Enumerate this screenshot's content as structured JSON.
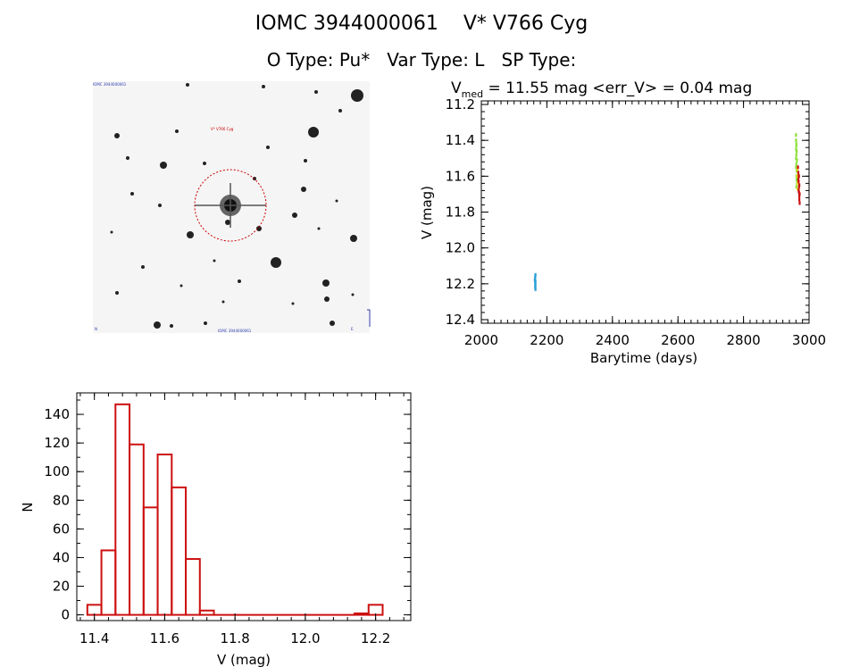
{
  "header": {
    "title_line1": "IOMC 3944000061    V* V766 Cyg",
    "title_line2": "O Type: Pu*   Var Type: L   SP Type:"
  },
  "image_panel": {
    "top_left_label": "IOMC 3944000061",
    "target_label": "V* V766 Cyg",
    "bottom_label": "IOMC 3944000061",
    "bottom_left_label": "N",
    "bottom_right_label": "E",
    "circle_color": "#cc0000"
  },
  "chart_data": [
    {
      "type": "scatter",
      "title": "V",
      "title_subscript": "med",
      "title_rest": " = 11.55 mag <err_V> = 0.04 mag",
      "xlabel": "Barytime (days)",
      "ylabel": "V (mag)",
      "xlim": [
        2000,
        3000
      ],
      "ylim": [
        12.42,
        11.18
      ],
      "y_inverted": true,
      "x_ticks": [
        2000,
        2200,
        2400,
        2600,
        2800,
        3000
      ],
      "x_ticklabels": [
        "2000",
        "2200",
        "2400",
        "2600",
        "2800",
        "3000"
      ],
      "y_ticks": [
        11.2,
        11.4,
        11.6,
        11.8,
        12.0,
        12.2,
        12.4
      ],
      "y_ticklabels": [
        "11.2",
        "11.4",
        "11.6",
        "11.8",
        "12.0",
        "12.2",
        "12.4"
      ],
      "series": [
        {
          "color": "#2aa0d8",
          "points": [
            [
              2164,
              12.16
            ],
            [
              2164,
              12.17
            ],
            [
              2164,
              12.18
            ],
            [
              2165,
              12.19
            ],
            [
              2164,
              12.2
            ],
            [
              2165,
              12.21
            ],
            [
              2164,
              12.22
            ],
            [
              2165,
              12.23
            ],
            [
              2163,
              12.18
            ],
            [
              2165,
              12.15
            ]
          ]
        },
        {
          "color": "#8ee03a",
          "points": [
            [
              2960,
              11.37
            ],
            [
              2960,
              11.4
            ],
            [
              2961,
              11.42
            ],
            [
              2960,
              11.45
            ],
            [
              2961,
              11.48
            ],
            [
              2960,
              11.5
            ],
            [
              2961,
              11.53
            ],
            [
              2960,
              11.55
            ],
            [
              2962,
              11.57
            ],
            [
              2961,
              11.6
            ],
            [
              2962,
              11.62
            ],
            [
              2963,
              11.64
            ],
            [
              2961,
              11.66
            ],
            [
              2962,
              11.46
            ],
            [
              2963,
              11.51
            ],
            [
              2961,
              11.43
            ]
          ]
        },
        {
          "color": "#e8e030",
          "points": [
            [
              2964,
              11.56
            ],
            [
              2964,
              11.6
            ],
            [
              2965,
              11.64
            ],
            [
              2966,
              11.58
            ],
            [
              2965,
              11.67
            ]
          ]
        },
        {
          "color": "#cc1010",
          "points": [
            [
              2966,
              11.55
            ],
            [
              2967,
              11.58
            ],
            [
              2968,
              11.6
            ],
            [
              2968,
              11.63
            ],
            [
              2969,
              11.66
            ],
            [
              2969,
              11.69
            ],
            [
              2970,
              11.71
            ],
            [
              2970,
              11.73
            ],
            [
              2971,
              11.75
            ],
            [
              2968,
              11.68
            ],
            [
              2967,
              11.62
            ],
            [
              2970,
              11.65
            ],
            [
              2969,
              11.6
            ],
            [
              2971,
              11.7
            ]
          ]
        }
      ]
    },
    {
      "type": "bar",
      "subtype": "histogram",
      "xlabel": "V (mag)",
      "ylabel": "N",
      "xlim": [
        11.35,
        12.3
      ],
      "ylim": [
        -4,
        155
      ],
      "bin_width": 0.04,
      "x_ticks": [
        11.4,
        11.6,
        11.8,
        12.0,
        12.2
      ],
      "x_ticklabels": [
        "11.4",
        "11.6",
        "11.8",
        "12.0",
        "12.2"
      ],
      "y_ticks": [
        0,
        20,
        40,
        60,
        80,
        100,
        120,
        140
      ],
      "y_ticklabels": [
        "0",
        "20",
        "40",
        "60",
        "80",
        "100",
        "120",
        "140"
      ],
      "bin_starts": [
        11.38,
        11.42,
        11.46,
        11.5,
        11.54,
        11.58,
        11.62,
        11.66,
        11.7,
        11.74,
        11.78,
        11.82,
        11.86,
        11.9,
        11.94,
        11.98,
        12.02,
        12.06,
        12.1,
        12.14,
        12.18,
        12.22
      ],
      "values": [
        7,
        45,
        147,
        119,
        75,
        112,
        89,
        39,
        3,
        0,
        0,
        0,
        0,
        0,
        0,
        0,
        0,
        0,
        0,
        1,
        7,
        0
      ],
      "color": "#cc1010"
    }
  ]
}
